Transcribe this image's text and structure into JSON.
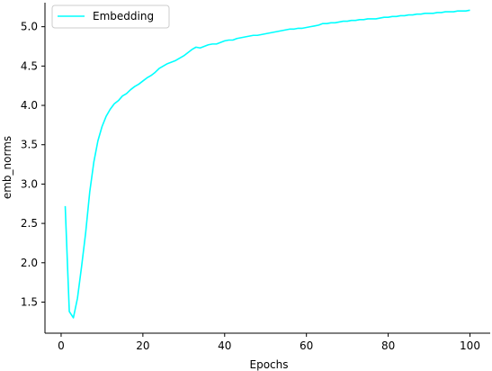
{
  "chart_data": {
    "type": "line",
    "title": "",
    "xlabel": "Epochs",
    "ylabel": "emb_norms",
    "xlim": [
      -3.95,
      104.95
    ],
    "ylim": [
      1.105,
      5.305
    ],
    "xticks": [
      0,
      20,
      40,
      60,
      80,
      100
    ],
    "yticks": [
      1.5,
      2.0,
      2.5,
      3.0,
      3.5,
      4.0,
      4.5,
      5.0
    ],
    "xtick_labels": [
      "0",
      "20",
      "40",
      "60",
      "80",
      "100"
    ],
    "ytick_labels": [
      "1.5",
      "2.0",
      "2.5",
      "3.0",
      "3.5",
      "4.0",
      "4.5",
      "5.0"
    ],
    "grid": false,
    "legend": "upper-left",
    "series": [
      {
        "name": "Embedding",
        "color": "#00ffff",
        "x": [
          1,
          2,
          3,
          4,
          5,
          6,
          7,
          8,
          9,
          10,
          11,
          12,
          13,
          14,
          15,
          16,
          17,
          18,
          19,
          20,
          21,
          22,
          23,
          24,
          25,
          26,
          27,
          28,
          29,
          30,
          31,
          32,
          33,
          34,
          35,
          36,
          37,
          38,
          39,
          40,
          41,
          42,
          43,
          44,
          45,
          46,
          47,
          48,
          49,
          50,
          51,
          52,
          53,
          54,
          55,
          56,
          57,
          58,
          59,
          60,
          61,
          62,
          63,
          64,
          65,
          66,
          67,
          68,
          69,
          70,
          71,
          72,
          73,
          74,
          75,
          76,
          77,
          78,
          79,
          80,
          81,
          82,
          83,
          84,
          85,
          86,
          87,
          88,
          89,
          90,
          91,
          92,
          93,
          94,
          95,
          96,
          97,
          98,
          99,
          100
        ],
        "y": [
          2.72,
          1.38,
          1.3,
          1.55,
          1.95,
          2.38,
          2.9,
          3.28,
          3.55,
          3.73,
          3.86,
          3.95,
          4.02,
          4.06,
          4.12,
          4.15,
          4.2,
          4.24,
          4.27,
          4.31,
          4.35,
          4.38,
          4.42,
          4.47,
          4.5,
          4.53,
          4.55,
          4.57,
          4.6,
          4.63,
          4.67,
          4.71,
          4.74,
          4.73,
          4.75,
          4.77,
          4.78,
          4.78,
          4.8,
          4.82,
          4.83,
          4.83,
          4.85,
          4.86,
          4.87,
          4.88,
          4.89,
          4.89,
          4.9,
          4.91,
          4.92,
          4.93,
          4.94,
          4.95,
          4.96,
          4.97,
          4.97,
          4.98,
          4.98,
          4.99,
          5.0,
          5.01,
          5.02,
          5.04,
          5.04,
          5.05,
          5.05,
          5.06,
          5.07,
          5.07,
          5.08,
          5.08,
          5.09,
          5.09,
          5.1,
          5.1,
          5.1,
          5.11,
          5.12,
          5.12,
          5.13,
          5.13,
          5.14,
          5.14,
          5.15,
          5.15,
          5.16,
          5.16,
          5.17,
          5.17,
          5.17,
          5.18,
          5.18,
          5.19,
          5.19,
          5.19,
          5.2,
          5.2,
          5.2,
          5.21
        ]
      }
    ]
  }
}
